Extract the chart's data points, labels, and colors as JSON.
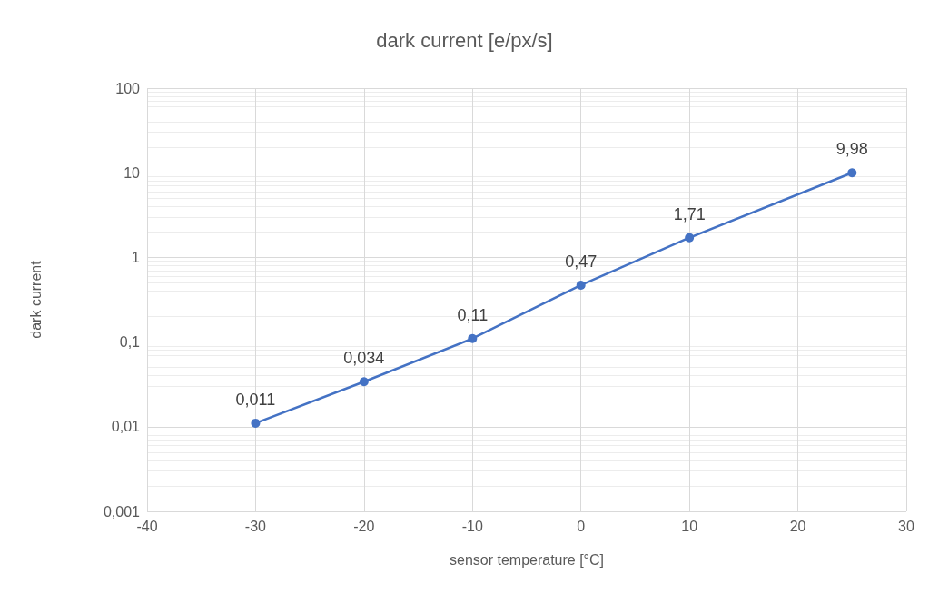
{
  "chart_data": {
    "type": "line",
    "title": "dark current [e/px/s]",
    "xlabel": "sensor temperature [°C]",
    "ylabel": "dark current",
    "x": [
      -30,
      -20,
      -10,
      0,
      10,
      25
    ],
    "series": [
      {
        "color": "#4472c4",
        "values": [
          0.011,
          0.034,
          0.11,
          0.47,
          1.71,
          9.98
        ],
        "value_labels": [
          "0,011",
          "0,034",
          "0,11",
          "0,47",
          "1,71",
          "9,98"
        ]
      }
    ],
    "xlim": [
      -40,
      30
    ],
    "xticks": [
      -40,
      -30,
      -20,
      -10,
      0,
      10,
      20,
      30
    ],
    "ylim": [
      0.001,
      100
    ],
    "yticks": [
      {
        "value": 0.001,
        "label": "0,001"
      },
      {
        "value": 0.01,
        "label": "0,01"
      },
      {
        "value": 0.1,
        "label": "0,1"
      },
      1,
      10,
      100
    ],
    "log": "y",
    "grid": true,
    "marker": "circle",
    "line_style": "solid"
  }
}
